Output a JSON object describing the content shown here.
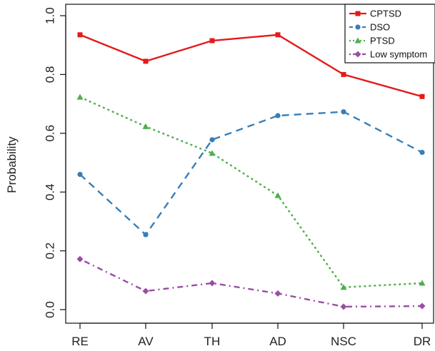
{
  "chart_data": {
    "type": "line",
    "title": "",
    "xlabel": "",
    "ylabel": "Probability",
    "categories": [
      "RE",
      "AV",
      "TH",
      "AD",
      "NSC",
      "DR"
    ],
    "ylim": [
      0,
      1
    ],
    "yticks": [
      "0.0",
      "0.2",
      "0.4",
      "0.6",
      "0.8",
      "1.0"
    ],
    "legend_position": "top-right",
    "grid": false,
    "series": [
      {
        "name": "CPTSD",
        "values": [
          0.935,
          0.845,
          0.915,
          0.935,
          0.8,
          0.725
        ],
        "color": "#e41a1c",
        "dash": "solid",
        "marker": "square"
      },
      {
        "name": "DSO",
        "values": [
          0.46,
          0.255,
          0.578,
          0.66,
          0.673,
          0.535
        ],
        "color": "#377eb8",
        "dash": "dashed",
        "marker": "circle"
      },
      {
        "name": "PTSD",
        "values": [
          0.723,
          0.623,
          0.532,
          0.388,
          0.076,
          0.09
        ],
        "color": "#4daf4a",
        "dash": "dotted",
        "marker": "triangle"
      },
      {
        "name": "Low symptom",
        "values": [
          0.172,
          0.063,
          0.09,
          0.055,
          0.01,
          0.012
        ],
        "color": "#984ea3",
        "dash": "dotdash",
        "marker": "diamond"
      }
    ]
  }
}
